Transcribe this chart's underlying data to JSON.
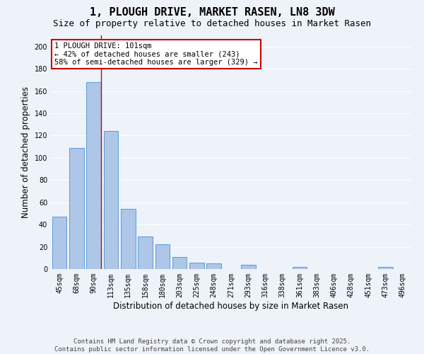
{
  "title": "1, PLOUGH DRIVE, MARKET RASEN, LN8 3DW",
  "subtitle": "Size of property relative to detached houses in Market Rasen",
  "xlabel": "Distribution of detached houses by size in Market Rasen",
  "ylabel": "Number of detached properties",
  "categories": [
    "45sqm",
    "68sqm",
    "90sqm",
    "113sqm",
    "135sqm",
    "158sqm",
    "180sqm",
    "203sqm",
    "225sqm",
    "248sqm",
    "271sqm",
    "293sqm",
    "316sqm",
    "338sqm",
    "361sqm",
    "383sqm",
    "406sqm",
    "428sqm",
    "451sqm",
    "473sqm",
    "496sqm"
  ],
  "values": [
    47,
    109,
    168,
    124,
    54,
    29,
    22,
    11,
    6,
    5,
    0,
    4,
    0,
    0,
    2,
    0,
    0,
    0,
    0,
    2,
    0
  ],
  "bar_color": "#aec6e8",
  "bar_edge_color": "#5b9bd5",
  "red_line_index": 2,
  "annotation_text": "1 PLOUGH DRIVE: 101sqm\n← 42% of detached houses are smaller (243)\n58% of semi-detached houses are larger (329) →",
  "annotation_box_color": "#ffffff",
  "annotation_box_edge_color": "#cc0000",
  "ylim": [
    0,
    210
  ],
  "yticks": [
    0,
    20,
    40,
    60,
    80,
    100,
    120,
    140,
    160,
    180,
    200
  ],
  "footer": "Contains HM Land Registry data © Crown copyright and database right 2025.\nContains public sector information licensed under the Open Government Licence v3.0.",
  "background_color": "#eef2f9",
  "grid_color": "#ffffff",
  "title_fontsize": 11,
  "subtitle_fontsize": 9,
  "axis_label_fontsize": 8.5,
  "tick_fontsize": 7,
  "annotation_fontsize": 7.5,
  "footer_fontsize": 6.5
}
